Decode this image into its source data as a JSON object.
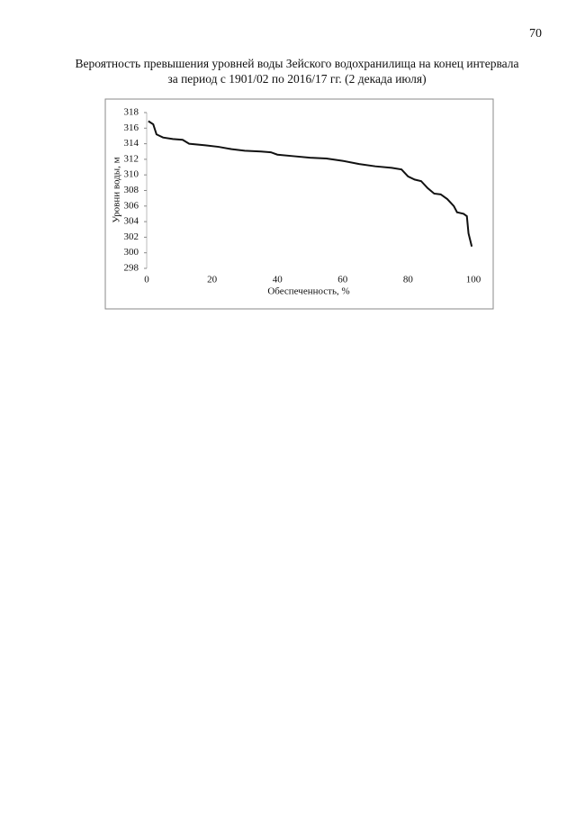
{
  "page_number": "70",
  "chart_data": {
    "type": "line",
    "title": [
      "Вероятность превышения уровней воды Зейского водохранилища на конец интервала",
      "за период с 1901/02 по 2016/17 гг. (2 декада июля)"
    ],
    "x_label": "Обеспеченность, %",
    "y_label": "Уровни воды, м",
    "xlim": [
      0,
      100
    ],
    "xticks": [
      0,
      20,
      40,
      60,
      80,
      100
    ],
    "ylim": [
      298,
      318
    ],
    "yticks": [
      298,
      300,
      302,
      304,
      306,
      308,
      310,
      312,
      314,
      316,
      318
    ],
    "series": [
      {
        "color": "#111111",
        "x": [
          0.5,
          2,
          3,
          5,
          8,
          11,
          13,
          18,
          22,
          26,
          30,
          35,
          38,
          40,
          45,
          50,
          55,
          60,
          65,
          70,
          75,
          78,
          80,
          82,
          84,
          86,
          88,
          90,
          92,
          94,
          95,
          97,
          98,
          98.5,
          99.5
        ],
        "values": [
          316.9,
          316.5,
          315.2,
          314.8,
          314.6,
          314.5,
          314.0,
          313.8,
          313.6,
          313.3,
          313.1,
          313.0,
          312.9,
          312.6,
          312.4,
          312.2,
          312.1,
          311.8,
          311.4,
          311.1,
          310.9,
          310.7,
          309.8,
          309.4,
          309.2,
          308.3,
          307.6,
          307.5,
          306.9,
          306.0,
          305.2,
          305.0,
          304.7,
          302.5,
          300.8
        ]
      }
    ]
  }
}
